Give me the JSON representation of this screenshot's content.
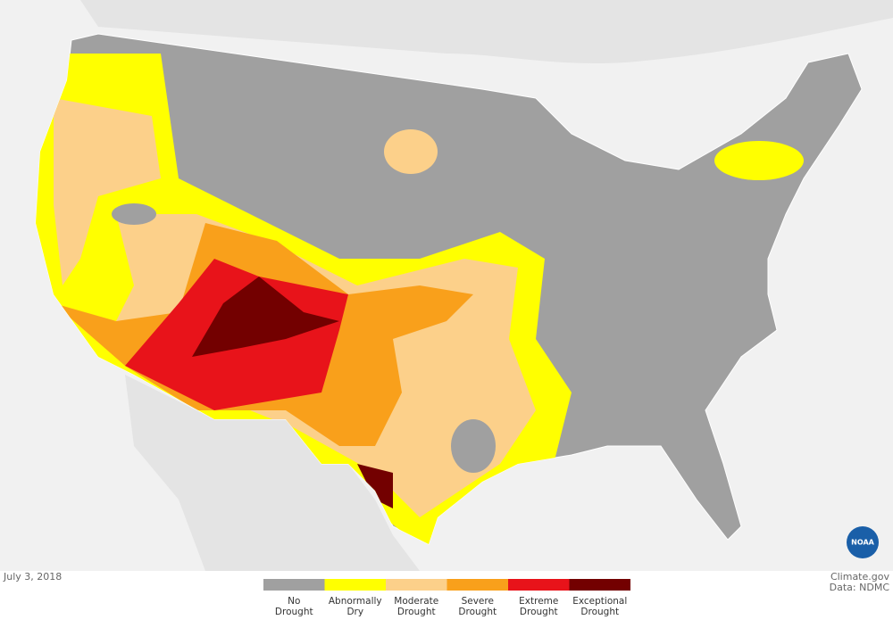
{
  "date": "July 3, 2018",
  "credit": {
    "source": "Climate.gov",
    "data": "Data: NDMC"
  },
  "logo": "NOAA",
  "legend": {
    "items": [
      {
        "label": [
          "No",
          "Drought"
        ],
        "color": "#a0a0a0"
      },
      {
        "label": [
          "Abnormally",
          "Dry"
        ],
        "color": "#ffff00"
      },
      {
        "label": [
          "Moderate",
          "Drought"
        ],
        "color": "#fcd08a"
      },
      {
        "label": [
          "Severe",
          "Drought"
        ],
        "color": "#f9a01b"
      },
      {
        "label": [
          "Extreme",
          "Drought"
        ],
        "color": "#e8131a"
      },
      {
        "label": [
          "Exceptional",
          "Drought"
        ],
        "color": "#730000"
      }
    ]
  }
}
